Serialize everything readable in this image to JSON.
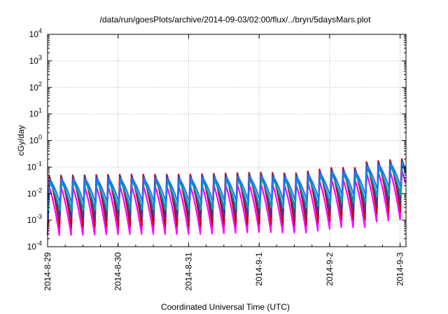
{
  "chart_data": {
    "type": "line",
    "title": "/data/run/goesPlots/archive/2014-09-03/02:00/flux/../bryn/5daysMars.plot",
    "xlabel": "Coordinated Universal Time (UTC)",
    "ylabel": "cGy/day",
    "yscale": "log",
    "ylim": [
      0.0001,
      10000
    ],
    "xlim": [
      "2014-08-29T00:00",
      "2014-09-03T02:00"
    ],
    "grid": true,
    "legend": "none",
    "x_ticks": [
      "2014-8-29",
      "2014-8-30",
      "2014-8-31",
      "2014-9-1",
      "2014-9-2",
      "2014-9-3"
    ],
    "y_ticks": [
      {
        "base": "10",
        "exp": "-4",
        "value": 0.0001
      },
      {
        "base": "10",
        "exp": "-3",
        "value": 0.001
      },
      {
        "base": "10",
        "exp": "-2",
        "value": 0.01
      },
      {
        "base": "10",
        "exp": "-1",
        "value": 0.1
      },
      {
        "base": "10",
        "exp": "0",
        "value": 1
      },
      {
        "base": "10",
        "exp": "1",
        "value": 10
      },
      {
        "base": "10",
        "exp": "2",
        "value": 100
      },
      {
        "base": "10",
        "exp": "3",
        "value": 1000
      },
      {
        "base": "10",
        "exp": "4",
        "value": 10000
      }
    ],
    "cycle_hours": 4,
    "baseline_peak": [
      {
        "t": "2014-08-29T00:00",
        "v": 0.045
      },
      {
        "t": "2014-08-30T00:00",
        "v": 0.05
      },
      {
        "t": "2014-08-31T00:00",
        "v": 0.05
      },
      {
        "t": "2014-08-31T12:00",
        "v": 0.055
      },
      {
        "t": "2014-09-01T00:00",
        "v": 0.06
      },
      {
        "t": "2014-09-01T12:00",
        "v": 0.055
      },
      {
        "t": "2014-09-02T00:00",
        "v": 0.09
      },
      {
        "t": "2014-09-02T09:00",
        "v": 0.09
      },
      {
        "t": "2014-09-02T10:00",
        "v": 0.14
      },
      {
        "t": "2014-09-03T02:00",
        "v": 0.2
      }
    ],
    "series": [
      {
        "color": "#ff00ff",
        "peak_factor": 0.42,
        "trough_factor": 0.006
      },
      {
        "color": "#c8000a",
        "peak_factor": 1.05,
        "trough_factor": 0.012
      },
      {
        "color": "#3c3c9e",
        "peak_factor": 0.9,
        "trough_factor": 0.025
      },
      {
        "color": "#00a0a0",
        "peak_factor": 0.6,
        "trough_factor": 0.05
      },
      {
        "color": "#1f77ff",
        "peak_factor": 0.75,
        "trough_factor": 0.09
      }
    ]
  }
}
